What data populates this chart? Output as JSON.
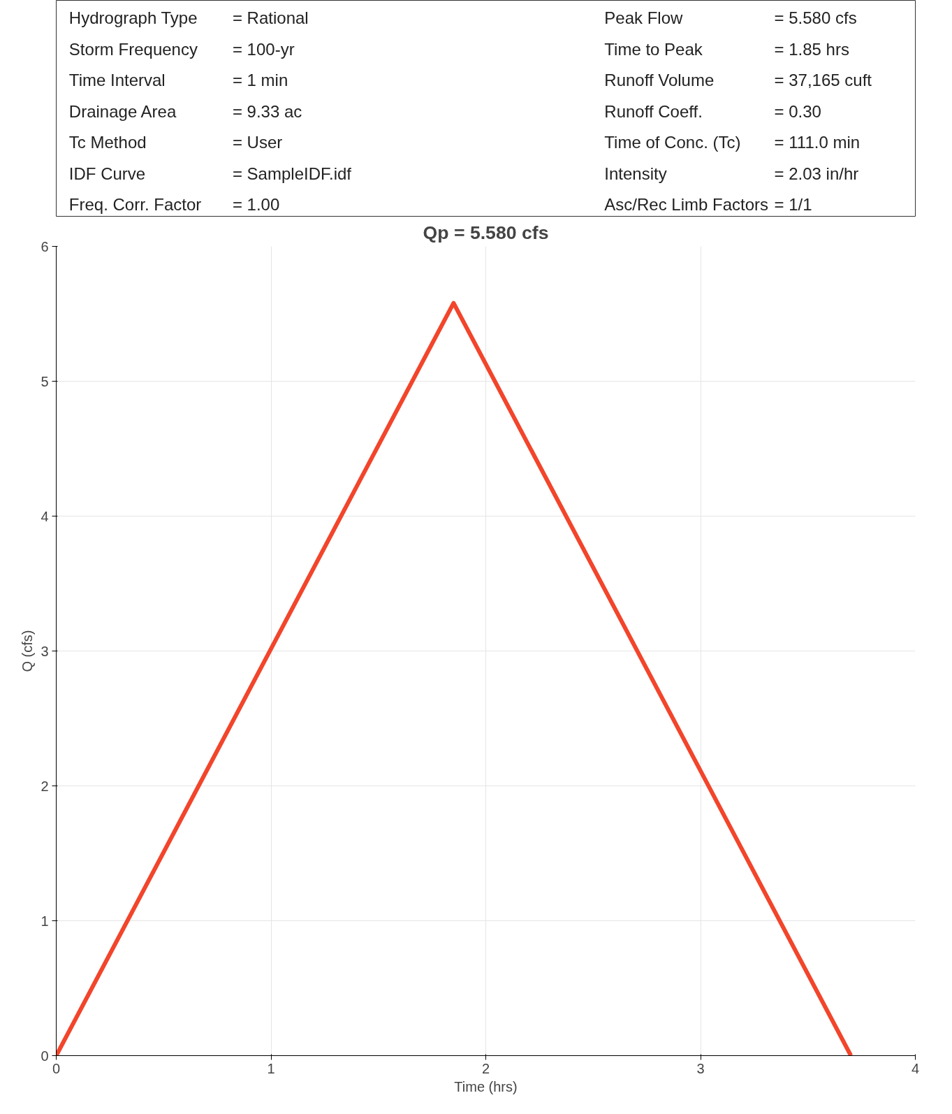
{
  "chart_data": {
    "type": "line",
    "title": "Qp = 5.580 cfs",
    "xlabel": "Time (hrs)",
    "ylabel": "Q (cfs)",
    "x": [
      0,
      1.85,
      3.7
    ],
    "series": [
      {
        "color": "#f2452b",
        "values": [
          0,
          5.58,
          0
        ]
      }
    ],
    "xlim": [
      0,
      4
    ],
    "xticks": [
      0,
      1,
      2,
      3,
      4
    ],
    "ylim": [
      0,
      6
    ],
    "yticks": [
      0,
      1,
      2,
      3,
      4,
      5,
      6
    ],
    "grid": true,
    "line_style": "solid",
    "marker": "none",
    "annotations": [
      "Hydrograph Type = Rational",
      "Storm Frequency = 100-yr",
      "Time Interval = 1 min",
      "Drainage Area = 9.33 ac",
      "Tc Method = User",
      "IDF Curve = SampleIDF.idf",
      "Freq. Corr. Factor = 1.00",
      "Peak Flow = 5.580 cfs",
      "Time to Peak = 1.85 hrs",
      "Runoff Volume = 37,165 cuft",
      "Runoff Coeff. = 0.30",
      "Time of Conc. (Tc) = 111.0 min",
      "Intensity = 2.03 in/hr",
      "Asc/Rec Limb Factors = 1/1"
    ]
  }
}
